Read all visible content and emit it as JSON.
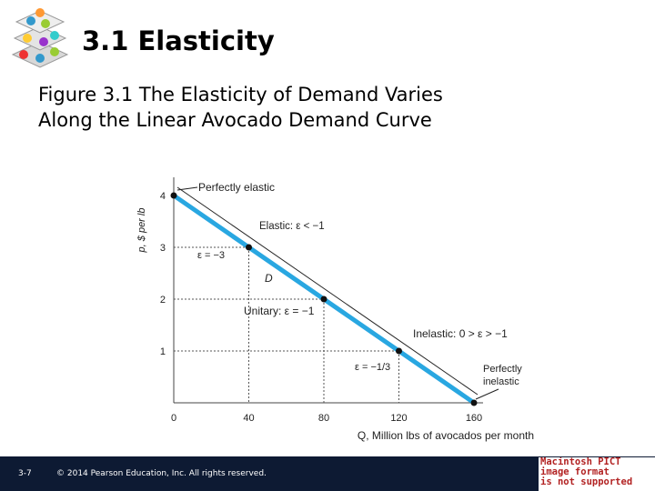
{
  "slide": {
    "title": "3.1 Elasticity",
    "figure_title_line1": "Figure 3.1  The Elasticity of Demand Varies",
    "figure_title_line2": "Along the Linear Avocado Demand Curve"
  },
  "footer": {
    "slide_number": "3-7",
    "copyright": "© 2014 Pearson Education, Inc. All rights reserved.",
    "pict_notice": [
      "Macintosh PICT",
      "image format",
      "is not supported"
    ]
  },
  "colors": {
    "demand_line": "#29a7e1",
    "footer_bg": "#0d1a33",
    "pict_text": "#b22222"
  },
  "chart_data": {
    "type": "line",
    "xlabel": "Q, Million lbs of avocados per month",
    "ylabel": "p, $ per lb",
    "xlim": [
      0,
      160
    ],
    "ylim": [
      0,
      4
    ],
    "x_ticks": [
      "0",
      "40",
      "80",
      "120",
      "160"
    ],
    "y_ticks": [
      "1",
      "2",
      "3",
      "4"
    ],
    "grid": false,
    "series": [
      {
        "name": "D",
        "x": [
          0,
          160
        ],
        "y": [
          4,
          0
        ]
      }
    ],
    "points": [
      {
        "x": 0,
        "y": 4
      },
      {
        "x": 40,
        "y": 3
      },
      {
        "x": 80,
        "y": 2
      },
      {
        "x": 120,
        "y": 1
      },
      {
        "x": 160,
        "y": 0
      }
    ],
    "annotations": {
      "perfectly_elastic": "Perfectly elastic",
      "elastic_range": "Elastic: ε < −1",
      "point_label_elastic": "ε = −3",
      "curve_label": "D",
      "unitary": "Unitary: ε = −1",
      "inelastic_range": "Inelastic: 0 > ε > −1",
      "point_label_inelastic": "ε = −1/3",
      "perfectly_inelastic_line1": "Perfectly",
      "perfectly_inelastic_line2": "inelastic"
    }
  }
}
